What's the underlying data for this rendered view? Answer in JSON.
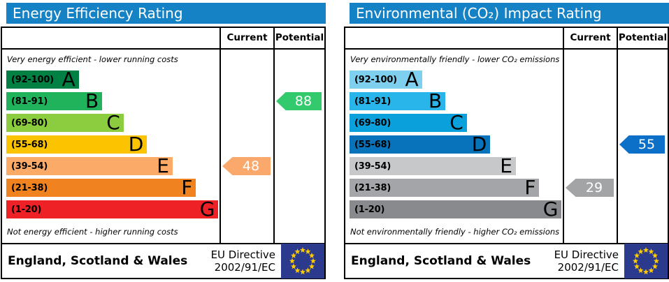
{
  "colors": {
    "header_bg": "#1682c6",
    "border": "#000000",
    "flag_bg": "#2b3a8c",
    "flag_star": "#ffcc00"
  },
  "panels": [
    {
      "title": "Energy Efficiency Rating",
      "col_current": "Current",
      "col_potential": "Potential",
      "top_caption": "Very energy efficient - lower running costs",
      "bottom_caption": "Not energy efficient - higher running costs",
      "bands": [
        {
          "range": "(92-100)",
          "letter": "A",
          "color": "#008143",
          "width_pct": 34
        },
        {
          "range": "(81-91)",
          "letter": "B",
          "color": "#21b35c",
          "width_pct": 45
        },
        {
          "range": "(69-80)",
          "letter": "C",
          "color": "#8ccc3f",
          "width_pct": 55
        },
        {
          "range": "(55-68)",
          "letter": "D",
          "color": "#fcc400",
          "width_pct": 66
        },
        {
          "range": "(39-54)",
          "letter": "E",
          "color": "#fbaa68",
          "width_pct": 78
        },
        {
          "range": "(21-38)",
          "letter": "F",
          "color": "#f0821f",
          "width_pct": 89
        },
        {
          "range": "(1-20)",
          "letter": "G",
          "color": "#ee2126",
          "width_pct": 99.5
        }
      ],
      "current": {
        "label": "48",
        "band_index": 4,
        "color": "#fba86c"
      },
      "potential": {
        "label": "88",
        "band_index": 1,
        "color": "#33c96d"
      },
      "region": "England, Scotland & Wales",
      "directive_line1": "EU Directive",
      "directive_line2": "2002/91/EC"
    },
    {
      "title": "Environmental (CO₂) Impact Rating",
      "col_current": "Current",
      "col_potential": "Potential",
      "top_caption": "Very environmentally friendly - lower CO₂ emissions",
      "bottom_caption": "Not environmentally friendly - higher CO₂ emissions",
      "bands": [
        {
          "range": "(92-100)",
          "letter": "A",
          "color": "#7ed0ee",
          "width_pct": 34
        },
        {
          "range": "(81-91)",
          "letter": "B",
          "color": "#29b5e9",
          "width_pct": 45
        },
        {
          "range": "(69-80)",
          "letter": "C",
          "color": "#0aa0dc",
          "width_pct": 55
        },
        {
          "range": "(55-68)",
          "letter": "D",
          "color": "#0873ba",
          "width_pct": 66
        },
        {
          "range": "(39-54)",
          "letter": "E",
          "color": "#c7c8ca",
          "width_pct": 78
        },
        {
          "range": "(21-38)",
          "letter": "F",
          "color": "#a4a5a8",
          "width_pct": 89
        },
        {
          "range": "(1-20)",
          "letter": "G",
          "color": "#888a8d",
          "width_pct": 99.5
        }
      ],
      "current": {
        "label": "29",
        "band_index": 5,
        "color": "#a3a4a6"
      },
      "potential": {
        "label": "55",
        "band_index": 3,
        "color": "#0c70c8"
      },
      "region": "England, Scotland & Wales",
      "directive_line1": "EU Directive",
      "directive_line2": "2002/91/EC"
    }
  ],
  "chart_data": [
    {
      "type": "bar",
      "title": "Energy Efficiency Rating",
      "categories": [
        "A (92-100)",
        "B (81-91)",
        "C (69-80)",
        "D (55-68)",
        "E (39-54)",
        "F (21-38)",
        "G (1-20)"
      ],
      "band_colors": [
        "#008143",
        "#21b35c",
        "#8ccc3f",
        "#fcc400",
        "#fbaa68",
        "#f0821f",
        "#ee2126"
      ],
      "series": [
        {
          "name": "Current",
          "value": 48,
          "band": "E"
        },
        {
          "name": "Potential",
          "value": 88,
          "band": "B"
        }
      ],
      "xlim": [
        1,
        100
      ],
      "annotations": [
        "Very energy efficient - lower running costs",
        "Not energy efficient - higher running costs"
      ],
      "footer": "England, Scotland & Wales — EU Directive 2002/91/EC"
    },
    {
      "type": "bar",
      "title": "Environmental (CO₂) Impact Rating",
      "categories": [
        "A (92-100)",
        "B (81-91)",
        "C (69-80)",
        "D (55-68)",
        "E (39-54)",
        "F (21-38)",
        "G (1-20)"
      ],
      "band_colors": [
        "#7ed0ee",
        "#29b5e9",
        "#0aa0dc",
        "#0873ba",
        "#c7c8ca",
        "#a4a5a8",
        "#888a8d"
      ],
      "series": [
        {
          "name": "Current",
          "value": 29,
          "band": "F"
        },
        {
          "name": "Potential",
          "value": 55,
          "band": "D"
        }
      ],
      "xlim": [
        1,
        100
      ],
      "annotations": [
        "Very environmentally friendly - lower CO₂ emissions",
        "Not environmentally friendly - higher CO₂ emissions"
      ],
      "footer": "England, Scotland & Wales — EU Directive 2002/91/EC"
    }
  ]
}
